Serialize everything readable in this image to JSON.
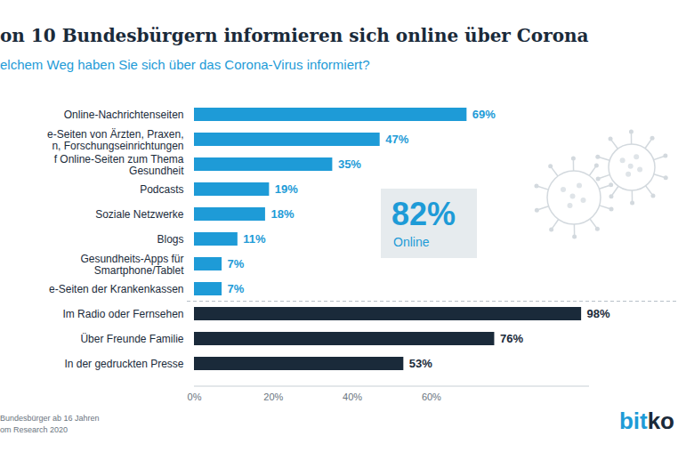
{
  "chart_data": {
    "type": "bar",
    "orientation": "horizontal",
    "title": "on 10 Bundesbürgern informieren sich online über Corona",
    "subtitle": "elchem Weg haben Sie sich über das Corona-Virus informiert?",
    "categories": [
      "Online-Nachrichtenseiten",
      "e-Seiten von Ärzten, Praxen,\nn, Forschungseinrichtungen",
      "f Online-Seiten zum Thema\nGesundheit",
      "Podcasts",
      "Soziale Netzwerke",
      "Blogs",
      "Gesundheits-Apps für\nSmartphone/Tablet",
      "e-Seiten der Krankenkassen",
      "Im Radio oder Fernsehen",
      "Über Freunde Familie",
      "In der gedruckten Presse"
    ],
    "values": [
      69,
      47,
      35,
      19,
      18,
      11,
      7,
      7,
      98,
      76,
      53
    ],
    "value_labels": [
      "69%",
      "47%",
      "35%",
      "19%",
      "18%",
      "11%",
      "7%",
      "7%",
      "98%",
      "76%",
      "53%"
    ],
    "colors": [
      "#1e9bd7",
      "#1e9bd7",
      "#1e9bd7",
      "#1e9bd7",
      "#1e9bd7",
      "#1e9bd7",
      "#1e9bd7",
      "#1e9bd7",
      "#1a2a3a",
      "#1a2a3a",
      "#1a2a3a"
    ],
    "data_labels": true,
    "xlim": [
      0,
      100
    ],
    "xticks": [
      {
        "value": 0,
        "label": "0%"
      },
      {
        "value": 20,
        "label": "20%"
      },
      {
        "value": 40,
        "label": "40%"
      },
      {
        "value": 60,
        "label": "60%"
      }
    ],
    "grid": false,
    "annotations": [
      "82%",
      "Online"
    ],
    "footnotes": [
      "Bundesbürger ab 16 Jahren",
      "om Research 2020"
    ],
    "source_logo": "bitko"
  }
}
